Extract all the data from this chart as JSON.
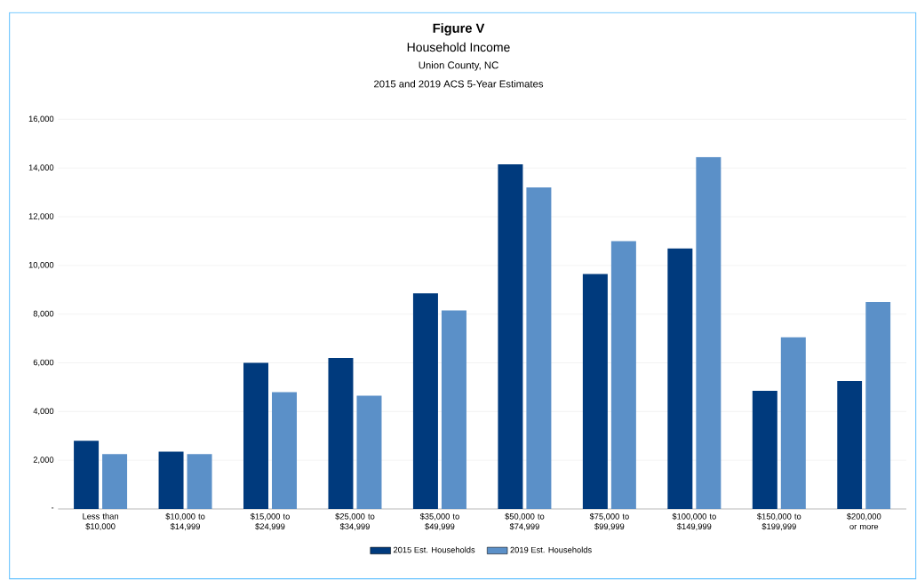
{
  "chart_data": {
    "type": "bar",
    "title": "Figure V",
    "subtitle": "Household Income",
    "annotations": [
      "Union County, NC",
      "2015 and 2019 ACS 5-Year Estimates"
    ],
    "categories": [
      "Less than $10,000",
      "$10,000 to $14,999",
      "$15,000 to $24,999",
      "$25,000 to $34,999",
      "$35,000 to $49,999",
      "$50,000 to $74,999",
      "$75,000 to $99,999",
      "$100,000 to $149,999",
      "$150,000 to $199,999",
      "$200,000 or more"
    ],
    "series": [
      {
        "name": "2015 Est. Households",
        "color": "#003a7d",
        "values": [
          2800,
          2350,
          6000,
          6200,
          8850,
          14150,
          9650,
          10700,
          4850,
          5250
        ]
      },
      {
        "name": "2019 Est. Households",
        "color": "#5b90c8",
        "values": [
          2250,
          2250,
          4800,
          4650,
          8150,
          13200,
          11000,
          14450,
          7050,
          8500
        ]
      }
    ],
    "ylim": [
      0,
      16000
    ],
    "yticks": [
      {
        "value": 0,
        "label": "-"
      },
      {
        "value": 2000,
        "label": "2,000"
      },
      {
        "value": 4000,
        "label": "4,000"
      },
      {
        "value": 6000,
        "label": "6,000"
      },
      {
        "value": 8000,
        "label": "8,000"
      },
      {
        "value": 10000,
        "label": "10,000"
      },
      {
        "value": 12000,
        "label": "12,000"
      },
      {
        "value": 14000,
        "label": "14,000"
      },
      {
        "value": 16000,
        "label": "16,000"
      }
    ],
    "grid": "y",
    "legend": "bottom"
  }
}
